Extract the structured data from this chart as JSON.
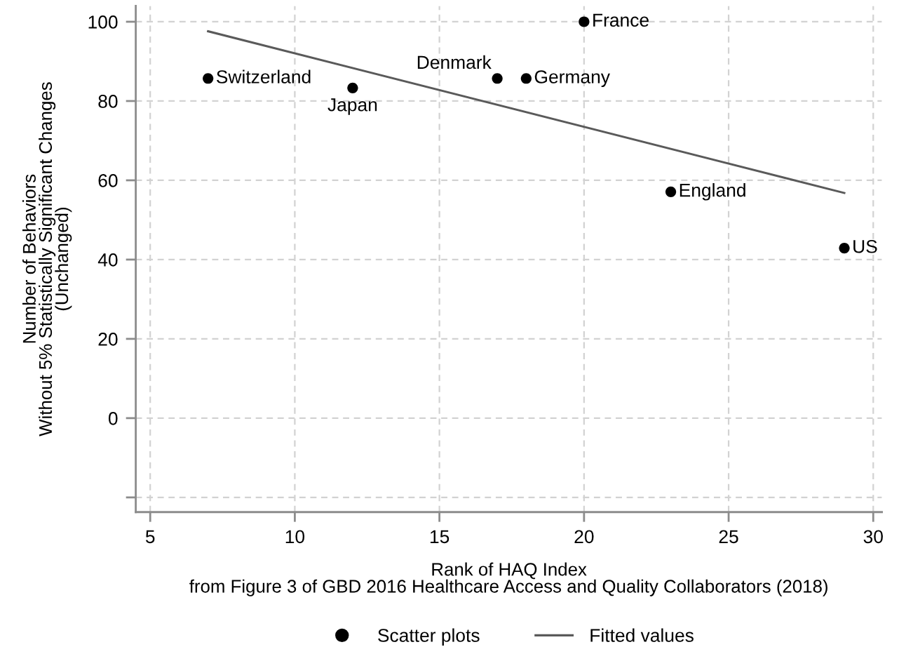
{
  "chart_data": {
    "type": "scatter",
    "xlabel": "Rank of HAQ Index\nfrom Figure 3 of GBD 2016 Healthcare Access and Quality Collaborators (2018)",
    "ylabel": "Number of Behaviors\nWithout 5% Statistically Significant Changes\n(Unchanged)",
    "series": [
      {
        "name": "Scatter plots",
        "color": "#000000",
        "marker": "circle",
        "x": [
          7,
          12,
          17,
          18,
          20,
          23,
          29
        ],
        "values": [
          85.7,
          83.3,
          85.7,
          85.7,
          100,
          57.1,
          42.9
        ]
      },
      {
        "name": "Fitted values",
        "type": "line",
        "color": "#5a5a5a",
        "x": [
          7,
          29
        ],
        "values": [
          97.6,
          56.8
        ],
        "line_style": "solid"
      }
    ],
    "annotations": [
      {
        "text": "Switzerland",
        "x": 7,
        "y": 85.7
      },
      {
        "text": "Japan",
        "x": 12,
        "y": 83.3
      },
      {
        "text": "Denmark",
        "x": 17,
        "y": 85.7
      },
      {
        "text": "Germany",
        "x": 18,
        "y": 85.7
      },
      {
        "text": "France",
        "x": 20,
        "y": 100
      },
      {
        "text": "England",
        "x": 23,
        "y": 57.1
      },
      {
        "text": "US",
        "x": 29,
        "y": 42.9
      }
    ],
    "xlim": [
      4.5,
      30.3
    ],
    "xticks": [
      5,
      10,
      15,
      20,
      25,
      30
    ],
    "ylim": [
      -23.7,
      104
    ],
    "yticks": [
      {
        "value": -20,
        "label": null
      },
      0,
      20,
      40,
      60,
      80,
      100
    ],
    "grid": true,
    "legend": "bottom"
  }
}
